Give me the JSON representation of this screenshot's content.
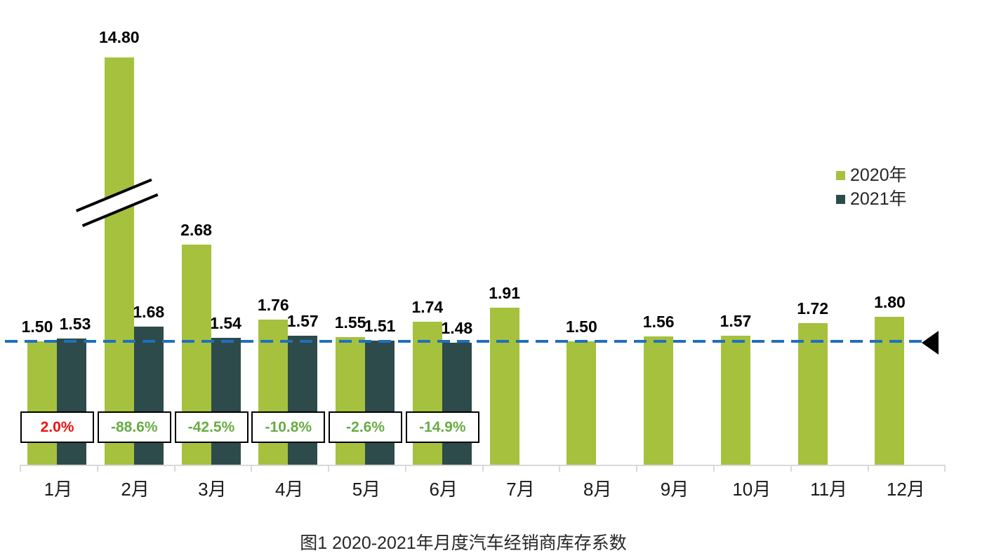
{
  "chart_data": {
    "type": "bar",
    "title": "图1  2020-2021年月度汽车经销商库存系数",
    "categories": [
      "1月",
      "2月",
      "3月",
      "4月",
      "5月",
      "6月",
      "7月",
      "8月",
      "9月",
      "10月",
      "11月",
      "12月"
    ],
    "series": [
      {
        "name": "2020年",
        "color": "#a5c13d",
        "values": [
          1.5,
          14.8,
          2.68,
          1.76,
          1.55,
          1.74,
          1.91,
          1.5,
          1.56,
          1.57,
          1.72,
          1.8
        ]
      },
      {
        "name": "2021年",
        "color": "#2d4b4b",
        "values": [
          1.53,
          1.68,
          1.54,
          1.57,
          1.51,
          1.48,
          null,
          null,
          null,
          null,
          null,
          null
        ]
      }
    ],
    "value_label_decimals": 2,
    "yoy_labels": [
      {
        "text": "2.0%",
        "color": "#ee1111"
      },
      {
        "text": "-88.6%",
        "color": "#68ac45"
      },
      {
        "text": "-42.5%",
        "color": "#68ac45"
      },
      {
        "text": "-10.8%",
        "color": "#68ac45"
      },
      {
        "text": "-2.6%",
        "color": "#68ac45"
      },
      {
        "text": "-14.9%",
        "color": "#68ac45"
      }
    ],
    "reference_line": {
      "value": 1.5,
      "color": "#1f6fbf",
      "style": "dashed",
      "marker": "left-pointing-black-triangle"
    },
    "axis_break": {
      "series": "2020年",
      "category": "2月",
      "note": "bar clipped with double-slash break marks"
    },
    "legend_position": "top-right",
    "axis_color": "#d9d9d9",
    "grid": false,
    "xlabel": "",
    "ylabel": "",
    "y_axis_visible": false
  }
}
